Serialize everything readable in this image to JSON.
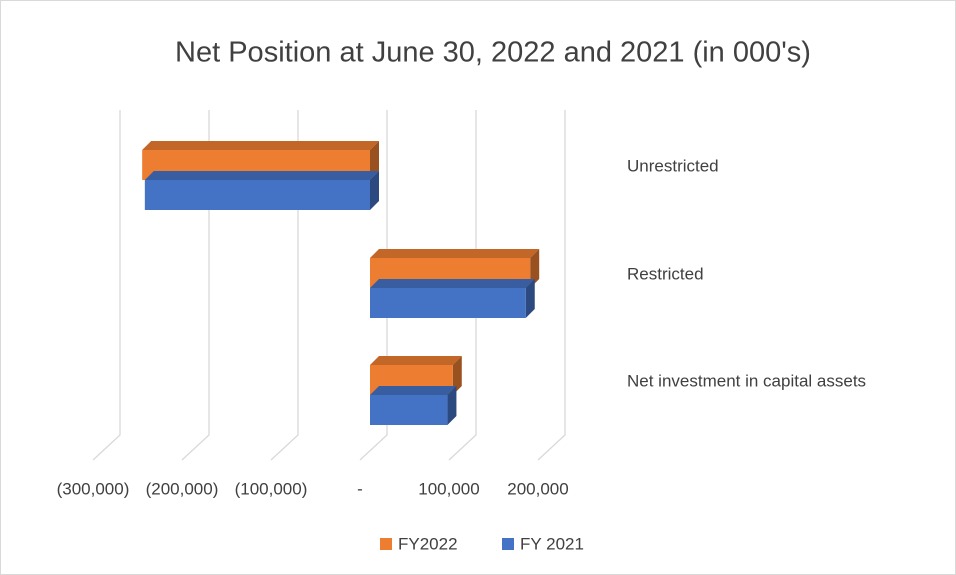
{
  "chart_data": {
    "type": "bar3d_horizontal",
    "title": "Net Position at June 30, 2022 and 2021  (in 000's)",
    "categories": [
      "Unrestricted",
      "Restricted",
      "Net investment in capital assets"
    ],
    "series": [
      {
        "name": "FY2022",
        "color": "#ed7d31",
        "values": [
          -256000,
          180000,
          93000
        ]
      },
      {
        "name": "FY 2021",
        "color": "#4472c4",
        "values": [
          -253000,
          175000,
          87000
        ]
      }
    ],
    "xlim": [
      -300000,
      200000
    ],
    "xticks": [
      {
        "value": -300000,
        "label": "(300,000)"
      },
      {
        "value": -200000,
        "label": "(200,000)"
      },
      {
        "value": -100000,
        "label": "(100,000)"
      },
      {
        "value": 0,
        "label": "-"
      },
      {
        "value": 100000,
        "label": "100,000"
      },
      {
        "value": 200000,
        "label": "200,000"
      }
    ],
    "grid": true,
    "legend": "bottom"
  }
}
